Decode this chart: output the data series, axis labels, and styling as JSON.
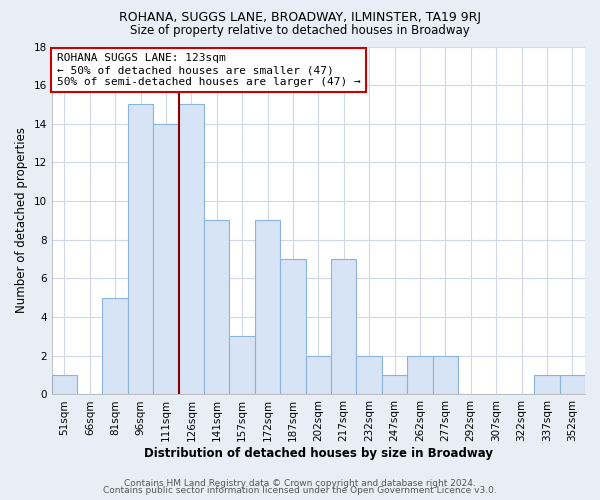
{
  "title": "ROHANA, SUGGS LANE, BROADWAY, ILMINSTER, TA19 9RJ",
  "subtitle": "Size of property relative to detached houses in Broadway",
  "xlabel": "Distribution of detached houses by size in Broadway",
  "ylabel": "Number of detached properties",
  "footer_line1": "Contains HM Land Registry data © Crown copyright and database right 2024.",
  "footer_line2": "Contains public sector information licensed under the Open Government Licence v3.0.",
  "bin_labels": [
    "51sqm",
    "66sqm",
    "81sqm",
    "96sqm",
    "111sqm",
    "126sqm",
    "141sqm",
    "157sqm",
    "172sqm",
    "187sqm",
    "202sqm",
    "217sqm",
    "232sqm",
    "247sqm",
    "262sqm",
    "277sqm",
    "292sqm",
    "307sqm",
    "322sqm",
    "337sqm",
    "352sqm"
  ],
  "bar_values": [
    1,
    0,
    5,
    15,
    14,
    15,
    9,
    3,
    9,
    7,
    2,
    7,
    2,
    1,
    2,
    2,
    0,
    0,
    0,
    1,
    1
  ],
  "bar_color": "#d6e4f5",
  "bar_edge_color": "#8ab4d9",
  "vline_x_index": 5,
  "vline_color": "#8b0000",
  "annotation_text": "ROHANA SUGGS LANE: 123sqm\n← 50% of detached houses are smaller (47)\n50% of semi-detached houses are larger (47) →",
  "annotation_box_facecolor": "#ffffff",
  "annotation_box_edgecolor": "#cc0000",
  "ylim": [
    0,
    18
  ],
  "yticks": [
    0,
    2,
    4,
    6,
    8,
    10,
    12,
    14,
    16,
    18
  ],
  "grid_color": "#d0d8e8",
  "plot_bg_color": "#ffffff",
  "figure_bg_color": "#e8eef5",
  "title_fontsize": 9.0,
  "subtitle_fontsize": 8.5,
  "axis_label_fontsize": 8.5,
  "tick_fontsize": 7.5,
  "footer_fontsize": 6.5
}
